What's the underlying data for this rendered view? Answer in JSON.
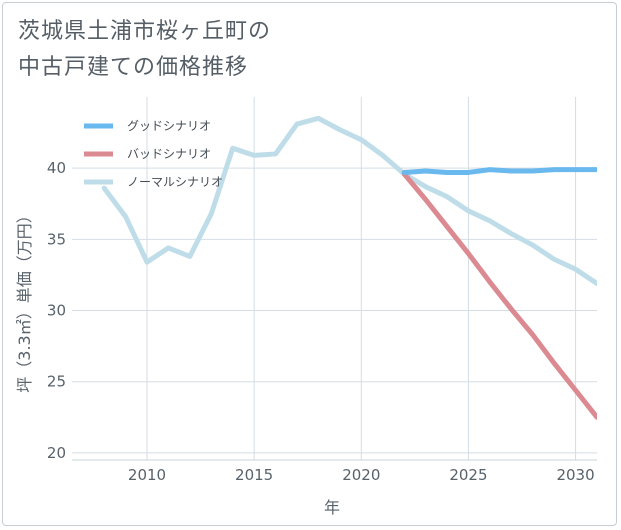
{
  "title": {
    "line1": "茨城県土浦市桜ヶ丘町の",
    "line2": "中古戸建ての価格推移"
  },
  "chart_data": {
    "type": "line",
    "xlabel": "年",
    "ylabel": "坪（3.3㎡）単価（万円）",
    "xlim": [
      2006.5,
      2031
    ],
    "ylim": [
      19.5,
      45
    ],
    "x_ticks": [
      "2010",
      "2015",
      "2020",
      "2025",
      "2030"
    ],
    "y_ticks": [
      "20",
      "25",
      "30",
      "35",
      "40"
    ],
    "legend_position": "top-left",
    "series": [
      {
        "name": "グッドシナリオ",
        "color": "#6ab9ee",
        "x": [
          2022,
          2023,
          2024,
          2025,
          2026,
          2027,
          2028,
          2029,
          2030,
          2031
        ],
        "values": [
          39.7,
          39.8,
          39.7,
          39.7,
          39.9,
          39.8,
          39.8,
          39.9,
          39.9,
          39.9
        ]
      },
      {
        "name": "バッドシナリオ",
        "color": "#dc8a92",
        "x": [
          2022,
          2023,
          2024,
          2025,
          2026,
          2027,
          2028,
          2029,
          2030,
          2031
        ],
        "values": [
          39.6,
          37.8,
          35.9,
          34.0,
          32.0,
          30.1,
          28.3,
          26.3,
          24.4,
          22.5
        ]
      },
      {
        "name": "ノーマルシナリオ",
        "color": "#bfdde9",
        "x": [
          2008,
          2009,
          2010,
          2011,
          2012,
          2013,
          2014,
          2015,
          2016,
          2017,
          2018,
          2019,
          2020,
          2021,
          2022,
          2023,
          2024,
          2025,
          2026,
          2027,
          2028,
          2029,
          2030,
          2031
        ],
        "values": [
          38.6,
          36.6,
          33.4,
          34.4,
          33.8,
          36.8,
          41.4,
          40.9,
          41.0,
          43.1,
          43.5,
          42.7,
          42.0,
          40.9,
          39.6,
          38.7,
          38.0,
          37.0,
          36.3,
          35.4,
          34.6,
          33.6,
          32.9,
          31.9
        ]
      }
    ]
  }
}
